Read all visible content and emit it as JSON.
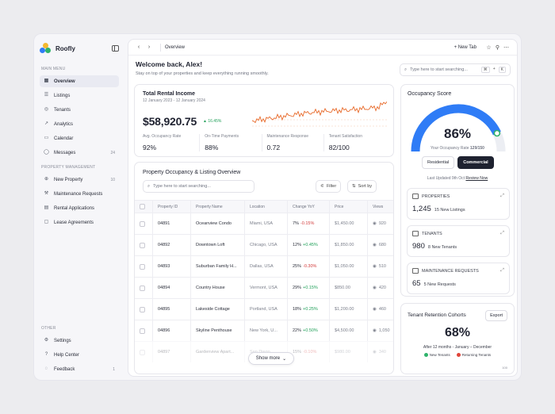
{
  "app": {
    "name": "Roofly"
  },
  "sidebar": {
    "main_label": "MAIN MENU",
    "main_items": [
      {
        "label": "Overview",
        "icon": "grid-icon"
      },
      {
        "label": "Listings",
        "icon": "list-icon"
      },
      {
        "label": "Tenants",
        "icon": "users-icon"
      },
      {
        "label": "Analytics",
        "icon": "analytics-icon"
      },
      {
        "label": "Calendar",
        "icon": "calendar-icon"
      },
      {
        "label": "Messages",
        "icon": "message-icon",
        "count": "24"
      }
    ],
    "pm_label": "PROPERTY MANAGEMENT",
    "pm_items": [
      {
        "label": "New Property",
        "icon": "plus-icon",
        "count": "10"
      },
      {
        "label": "Maintenance Requests",
        "icon": "wrench-icon"
      },
      {
        "label": "Rental Applications",
        "icon": "document-icon"
      },
      {
        "label": "Lease Agreements",
        "icon": "contract-icon"
      }
    ],
    "other_label": "OTHER",
    "other_items": [
      {
        "label": "Settings",
        "icon": "gear-icon"
      },
      {
        "label": "Help Center",
        "icon": "help-icon"
      },
      {
        "label": "Feedback",
        "icon": "feedback-icon",
        "count": "1"
      }
    ]
  },
  "topbar": {
    "tab": "Overview",
    "new_tab": "New Tab"
  },
  "welcome": {
    "title": "Welcome back, Alex!",
    "subtitle": "Stay on top of your properties and keep everything running smoothly."
  },
  "search": {
    "placeholder": "Type here to start searching...",
    "key1": "⌘",
    "key2": "+",
    "key3": "K"
  },
  "revenue": {
    "title": "Total Rental Income",
    "date": "12 January 2023 - 12 January 2024",
    "amount": "$58,920.75",
    "change": "16.45%",
    "stats": [
      {
        "label": "Avg. Occupancy Rate",
        "value": "92%"
      },
      {
        "label": "On-Time Payments",
        "value": "88%"
      },
      {
        "label": "Maintenance Response",
        "value": "0.72"
      },
      {
        "label": "Tenant Satisfaction",
        "value": "82/100"
      }
    ]
  },
  "listing": {
    "title": "Property Occupancy & Listing Overview",
    "search_placeholder": "Type here to start searching...",
    "filter": "Filter",
    "sort": "Sort by",
    "columns": [
      "Property ID",
      "Property Name",
      "Location",
      "Change YoY",
      "Price",
      "Views"
    ],
    "rows": [
      {
        "id": "04891",
        "name": "Oceanview Condo",
        "location": "Miami, USA",
        "occ": "7%",
        "chg": "-0.15%",
        "dir": "neg",
        "price": "$1,450.00",
        "views": "920"
      },
      {
        "id": "04892",
        "name": "Downtown Loft",
        "location": "Chicago, USA",
        "occ": "12%",
        "chg": "+0.45%",
        "dir": "pos",
        "price": "$1,850.00",
        "views": "680"
      },
      {
        "id": "04893",
        "name": "Suburban Family H...",
        "location": "Dallas, USA",
        "occ": "25%",
        "chg": "-0.30%",
        "dir": "neg",
        "price": "$1,050.00",
        "views": "510"
      },
      {
        "id": "04894",
        "name": "Country House",
        "location": "Vermont, USA",
        "occ": "29%",
        "chg": "+0.15%",
        "dir": "pos",
        "price": "$850.00",
        "views": "420"
      },
      {
        "id": "04895",
        "name": "Lakeside Cottage",
        "location": "Portland, USA",
        "occ": "18%",
        "chg": "+0.25%",
        "dir": "pos",
        "price": "$1,200.00",
        "views": "460"
      },
      {
        "id": "04896",
        "name": "Skyline Penthouse",
        "location": "New York, U...",
        "occ": "22%",
        "chg": "+0.50%",
        "dir": "pos",
        "price": "$4,500.00",
        "views": "1,050"
      },
      {
        "id": "04897",
        "name": "Gardenview Apart...",
        "location": "San Diego...",
        "occ": "15%",
        "chg": "-0.10%",
        "dir": "neg",
        "price": "$980.00",
        "views": "340"
      }
    ],
    "show_more": "Show more"
  },
  "occupancy": {
    "title": "Occupancy Score",
    "value": "86%",
    "fraction": 0.86,
    "sub": "Your Occupancy Rate",
    "sub_bold": "129/150",
    "toggle_a": "Residential",
    "toggle_b": "Commercial",
    "updated": "Last Updated 9th Oct",
    "review": "Review Now",
    "cards": [
      {
        "label": "PROPERTIES",
        "value": "1,245",
        "note": "15 New Listings"
      },
      {
        "label": "TENANTS",
        "value": "980",
        "note": "8 New Tenants"
      },
      {
        "label": "MAINTENANCE REQUESTS",
        "value": "65",
        "note": "5 New Requests"
      }
    ]
  },
  "retention": {
    "title": "Tenant Retention Cohorts",
    "export": "Export",
    "value": "68%",
    "sub": "After 12 months - January – December",
    "legend_a": "New Tenants",
    "legend_b": "Returning Tenants",
    "tick": "100"
  },
  "colors": {
    "accent": "#2f7cf6",
    "green": "#22a05a",
    "red": "#d23b3b",
    "orange": "#e86a2a"
  }
}
